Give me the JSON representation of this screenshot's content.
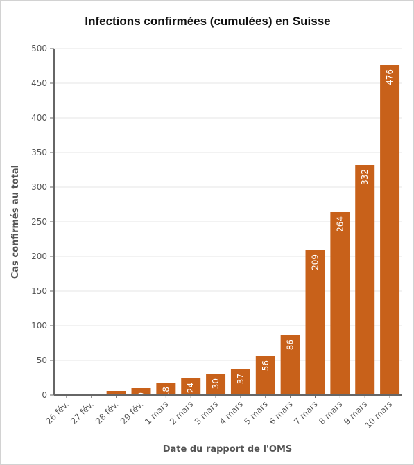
{
  "chart_data": {
    "type": "bar",
    "title": "Infections confirmées (cumulées) en Suisse",
    "xlabel": "Date du rapport de l'OMS",
    "ylabel": "Cas confirmés au total",
    "categories": [
      "26 fév.",
      "27 fév.",
      "28 fév.",
      "29 fév.",
      "1 mars",
      "2 mars",
      "3 mars",
      "4 mars",
      "5 mars",
      "6 mars",
      "7 mars",
      "8 mars",
      "9 mars",
      "10 mars"
    ],
    "values": [
      1,
      1,
      6,
      10,
      18,
      24,
      30,
      37,
      56,
      86,
      209,
      264,
      332,
      476
    ],
    "data_labels": [
      "",
      "",
      "6",
      "10",
      "18",
      "24",
      "30",
      "37",
      "56",
      "86",
      "209",
      "264",
      "332",
      "476"
    ],
    "yticks": [
      0,
      50,
      100,
      150,
      200,
      250,
      300,
      350,
      400,
      450,
      500
    ],
    "ylim": [
      0,
      500
    ],
    "grid": true,
    "legend": "none",
    "colors": {
      "bar": "#c8611a",
      "grid": "#e6e6e6",
      "axis": "#666666"
    }
  }
}
